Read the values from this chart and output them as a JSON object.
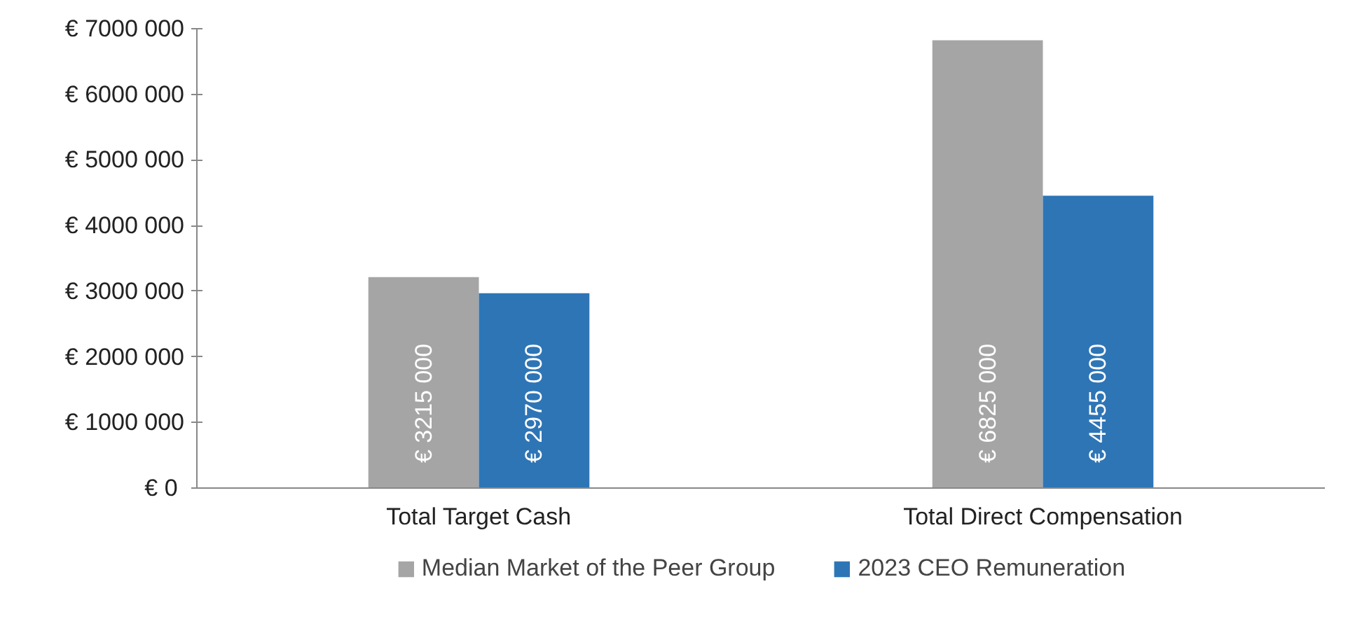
{
  "chart_data": {
    "type": "bar",
    "categories": [
      "Total Target Cash",
      "Total Direct Compensation"
    ],
    "series": [
      {
        "name": "Median Market of the Peer Group",
        "color": "#a5a5a5",
        "values": [
          3215000,
          6825000
        ],
        "value_labels": [
          "€ 3215 000",
          "€ 6825 000"
        ]
      },
      {
        "name": "2023 CEO Remuneration",
        "color": "#2e75b6",
        "values": [
          2970000,
          4455000
        ],
        "value_labels": [
          "€ 2970 000",
          "€ 4455 000"
        ]
      }
    ],
    "ylim": [
      0,
      7000000
    ],
    "yticks": [
      {
        "value": 0,
        "label": "€  0"
      },
      {
        "value": 1000000,
        "label": "€ 1000 000"
      },
      {
        "value": 2000000,
        "label": "€ 2000 000"
      },
      {
        "value": 3000000,
        "label": "€ 3000 000"
      },
      {
        "value": 4000000,
        "label": "€ 4000 000"
      },
      {
        "value": 5000000,
        "label": "€ 5000 000"
      },
      {
        "value": 6000000,
        "label": "€ 6000 000"
      },
      {
        "value": 7000000,
        "label": "€ 7000 000"
      }
    ],
    "grid": false,
    "legend": "bottom"
  }
}
